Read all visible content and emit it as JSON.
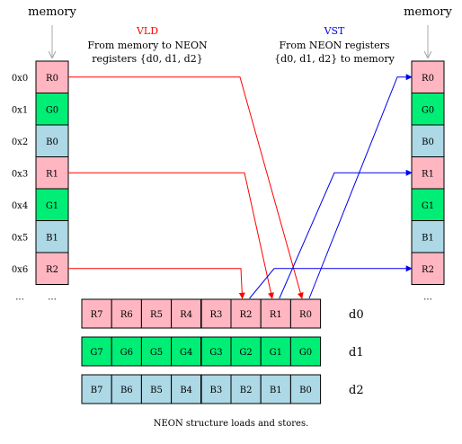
{
  "memory_title": "memory",
  "vld": {
    "title": "VLD",
    "line1": "From memory to NEON",
    "line2": "registers {d0, d1, d2}",
    "color": "#ff0000"
  },
  "vst": {
    "title": "VST",
    "line1": "From NEON registers",
    "line2": "{d0, d1, d2} to memory",
    "color": "#0000ee"
  },
  "addresses": [
    "0x0",
    "0x1",
    "0x2",
    "0x3",
    "0x4",
    "0x5",
    "0x6",
    "..."
  ],
  "left_memory": [
    {
      "label": "R0",
      "kind": "r"
    },
    {
      "label": "G0",
      "kind": "g"
    },
    {
      "label": "B0",
      "kind": "b"
    },
    {
      "label": "R1",
      "kind": "r"
    },
    {
      "label": "G1",
      "kind": "g"
    },
    {
      "label": "B1",
      "kind": "b"
    },
    {
      "label": "R2",
      "kind": "r"
    }
  ],
  "left_ellipsis": "...",
  "right_memory": [
    {
      "label": "R0",
      "kind": "r"
    },
    {
      "label": "G0",
      "kind": "g"
    },
    {
      "label": "B0",
      "kind": "b"
    },
    {
      "label": "R1",
      "kind": "r"
    },
    {
      "label": "G1",
      "kind": "g"
    },
    {
      "label": "B1",
      "kind": "b"
    },
    {
      "label": "R2",
      "kind": "r"
    }
  ],
  "right_ellipsis": "...",
  "registers": [
    {
      "name": "d0",
      "kind": "r",
      "cells": [
        "R7",
        "R6",
        "R5",
        "R4",
        "R3",
        "R2",
        "R1",
        "R0"
      ]
    },
    {
      "name": "d1",
      "kind": "g",
      "cells": [
        "G7",
        "G6",
        "G5",
        "G4",
        "G3",
        "G2",
        "G1",
        "G0"
      ]
    },
    {
      "name": "d2",
      "kind": "b",
      "cells": [
        "B7",
        "B6",
        "B5",
        "B4",
        "B3",
        "B2",
        "B1",
        "B0"
      ]
    }
  ],
  "caption": "NEON structure loads and stores.",
  "colors": {
    "r": "#ffb6c1",
    "g": "#00ee76",
    "b": "#add8e6",
    "arrow_gray": "#aaaaaa"
  }
}
